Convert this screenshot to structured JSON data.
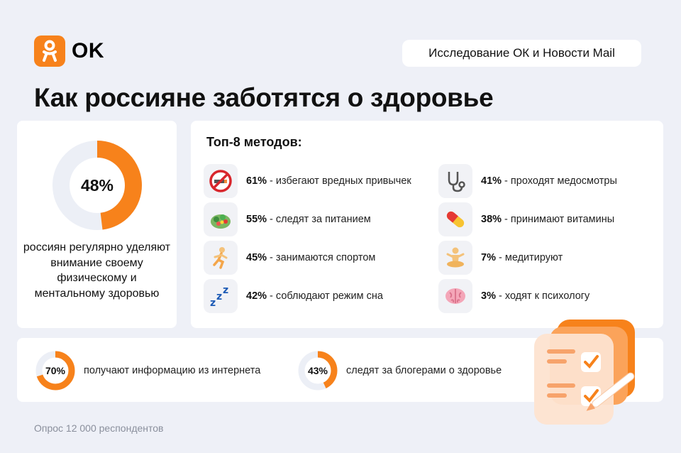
{
  "brand": {
    "name": "OK",
    "accent": "#f7821b"
  },
  "header": {
    "source": "Исследование ОК и Новости Mail"
  },
  "title": "Как россияне заботятся о здоровье",
  "main_stat": {
    "value": "48%",
    "fraction": 0.48,
    "caption": "россиян регулярно уделяют внимание своему физическому и ментальному здоровью"
  },
  "methods": {
    "title": "Топ-8 методов:",
    "items": [
      {
        "percent": "61%",
        "text": " - избегают вредных привычек",
        "icon": "no-smoking-icon"
      },
      {
        "percent": "55%",
        "text": " - следят за питанием",
        "icon": "salad-icon"
      },
      {
        "percent": "45%",
        "text": " - занимаются спортом",
        "icon": "runner-icon"
      },
      {
        "percent": "42%",
        "text": " - соблюдают режим сна",
        "icon": "zzz-icon"
      },
      {
        "percent": "41%",
        "text": " - проходят медосмотры",
        "icon": "stethoscope-icon"
      },
      {
        "percent": "38%",
        "text": " - принимают витамины",
        "icon": "pill-icon"
      },
      {
        "percent": "7%",
        "text": " - медитируют",
        "icon": "meditation-icon"
      },
      {
        "percent": "3%",
        "text": " - ходят к психологу",
        "icon": "brain-icon"
      }
    ]
  },
  "bottom_stats": [
    {
      "value": "70%",
      "fraction": 0.7,
      "text": "получают информацию из интернета"
    },
    {
      "value": "43%",
      "fraction": 0.43,
      "text": "следят за блогерами о здоровье"
    }
  ],
  "footnote": "Опрос 12 000 респондентов"
}
